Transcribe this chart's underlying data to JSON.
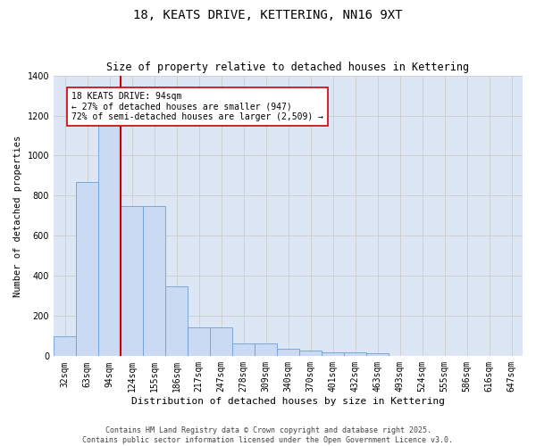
{
  "title1": "18, KEATS DRIVE, KETTERING, NN16 9XT",
  "title2": "Size of property relative to detached houses in Kettering",
  "xlabel": "Distribution of detached houses by size in Kettering",
  "ylabel": "Number of detached properties",
  "categories": [
    "32sqm",
    "63sqm",
    "94sqm",
    "124sqm",
    "155sqm",
    "186sqm",
    "217sqm",
    "247sqm",
    "278sqm",
    "309sqm",
    "340sqm",
    "370sqm",
    "401sqm",
    "432sqm",
    "463sqm",
    "493sqm",
    "524sqm",
    "555sqm",
    "586sqm",
    "616sqm",
    "647sqm"
  ],
  "values": [
    100,
    870,
    1155,
    750,
    750,
    350,
    145,
    145,
    65,
    65,
    35,
    30,
    20,
    20,
    15,
    0,
    0,
    0,
    0,
    0,
    0
  ],
  "bar_color": "#c9daf2",
  "bar_edge_color": "#6a9fd8",
  "property_line_x": 2,
  "property_line_color": "#cc0000",
  "annotation_box_text": "18 KEATS DRIVE: 94sqm\n← 27% of detached houses are smaller (947)\n72% of semi-detached houses are larger (2,509) →",
  "annotation_box_color": "#cc0000",
  "annotation_box_bg": "#ffffff",
  "ylim": [
    0,
    1400
  ],
  "yticks": [
    0,
    200,
    400,
    600,
    800,
    1000,
    1200,
    1400
  ],
  "grid_color": "#cccccc",
  "bg_color": "#dce6f5",
  "fig_bg_color": "#ffffff",
  "footer_line1": "Contains HM Land Registry data © Crown copyright and database right 2025.",
  "footer_line2": "Contains public sector information licensed under the Open Government Licence v3.0.",
  "title1_fontsize": 10,
  "title2_fontsize": 8.5,
  "xlabel_fontsize": 8,
  "ylabel_fontsize": 7.5,
  "tick_fontsize": 7,
  "annotation_fontsize": 7,
  "footer_fontsize": 6
}
